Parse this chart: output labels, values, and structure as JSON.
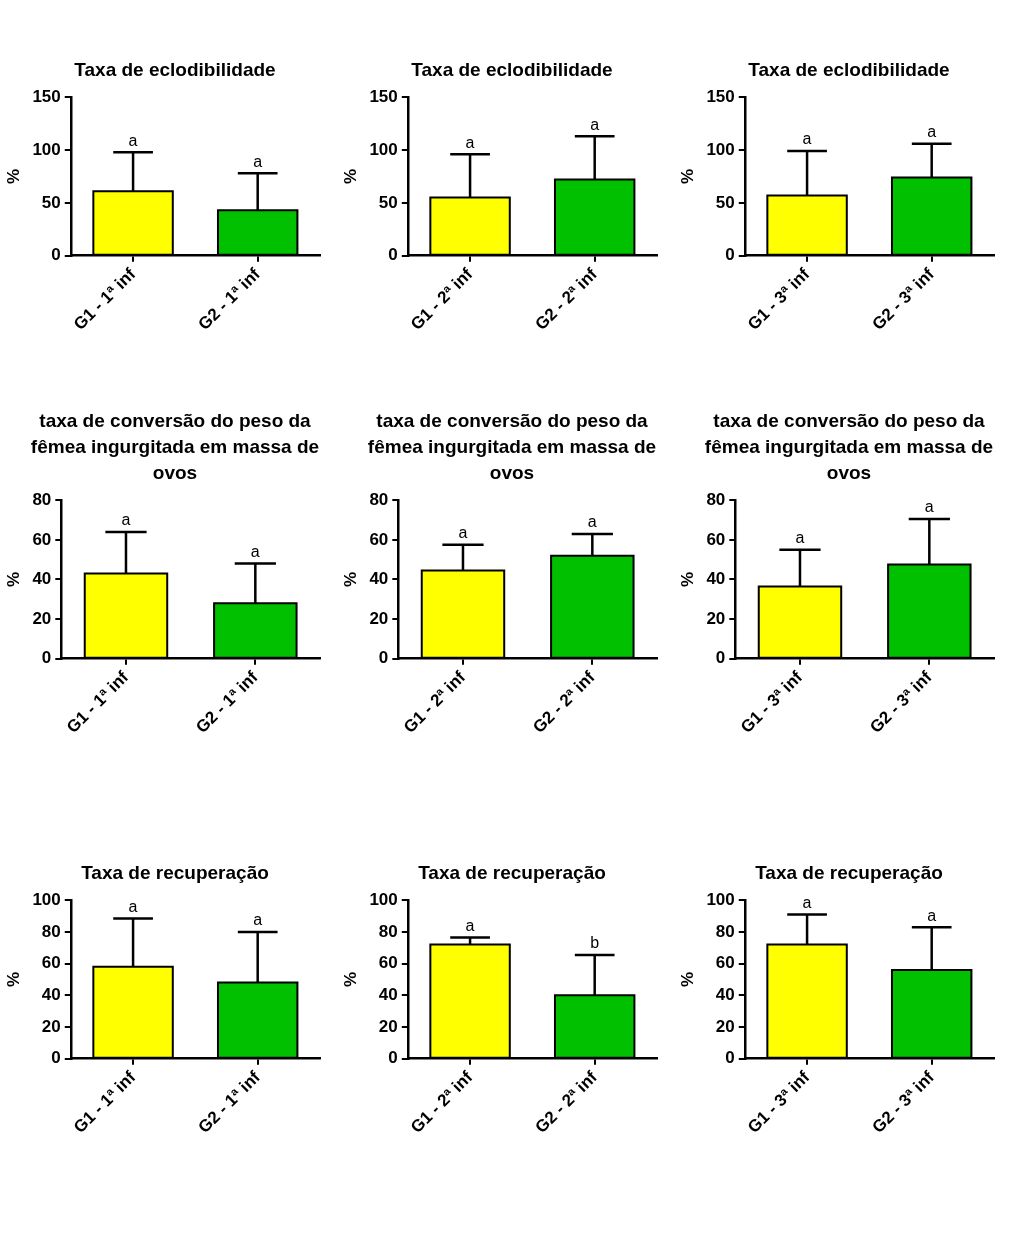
{
  "chart_data": [
    {
      "type": "bar",
      "title": "Taxa de eclodibilidade",
      "ylabel": "%",
      "categories": [
        "G1 - 1ª inf",
        "G2 - 1ª inf"
      ],
      "values": [
        61,
        43
      ],
      "colors": [
        "#ffff00",
        "#00c000"
      ],
      "errors": [
        [
          61,
          98
        ],
        [
          43,
          78
        ]
      ],
      "ylim": [
        0,
        150
      ],
      "yticks": [
        0,
        50,
        100,
        150
      ],
      "grid": false,
      "legend": false,
      "annotations": [
        {
          "text": "a",
          "x": "G1 - 1ª inf",
          "y": 98
        },
        {
          "text": "a",
          "x": "G2 - 1ª inf",
          "y": 78
        }
      ]
    },
    {
      "type": "bar",
      "title": "Taxa de eclodibilidade",
      "ylabel": "%",
      "categories": [
        "G1 - 2ª inf",
        "G2 - 2ª inf"
      ],
      "values": [
        55,
        72
      ],
      "colors": [
        "#ffff00",
        "#00c000"
      ],
      "errors": [
        [
          55,
          96
        ],
        [
          72,
          113
        ]
      ],
      "ylim": [
        0,
        150
      ],
      "yticks": [
        0,
        50,
        100,
        150
      ],
      "grid": false,
      "legend": false,
      "annotations": [
        {
          "text": "a",
          "x": "G1 - 2ª inf",
          "y": 96
        },
        {
          "text": "a",
          "x": "G2 - 2ª inf",
          "y": 113
        }
      ]
    },
    {
      "type": "bar",
      "title": "Taxa de eclodibilidade",
      "ylabel": "%",
      "categories": [
        "G1 - 3ª inf",
        "G2 - 3ª inf"
      ],
      "values": [
        57,
        74
      ],
      "colors": [
        "#ffff00",
        "#00c000"
      ],
      "errors": [
        [
          57,
          99
        ],
        [
          74,
          106
        ]
      ],
      "ylim": [
        0,
        150
      ],
      "yticks": [
        0,
        50,
        100,
        150
      ],
      "grid": false,
      "legend": false,
      "annotations": [
        {
          "text": "a",
          "x": "G1 - 3ª inf",
          "y": 99
        },
        {
          "text": "a",
          "x": "G2 - 3ª inf",
          "y": 106
        }
      ]
    },
    {
      "type": "bar",
      "title": "taxa de conversão do peso da fêmea ingurgitada em massa de ovos",
      "ylabel": "%",
      "categories": [
        "G1 - 1ª inf",
        "G2 - 1ª inf"
      ],
      "values": [
        43,
        28
      ],
      "colors": [
        "#ffff00",
        "#00c000"
      ],
      "errors": [
        [
          43,
          64
        ],
        [
          28,
          48
        ]
      ],
      "ylim": [
        0,
        80
      ],
      "yticks": [
        0,
        20,
        40,
        60,
        80
      ],
      "grid": false,
      "legend": false,
      "annotations": [
        {
          "text": "a",
          "x": "G1 - 1ª inf",
          "y": 64
        },
        {
          "text": "a",
          "x": "G2 - 1ª inf",
          "y": 48
        }
      ]
    },
    {
      "type": "bar",
      "title": "taxa de conversão do peso da fêmea ingurgitada em massa de ovos",
      "ylabel": "%",
      "categories": [
        "G1 - 2ª inf",
        "G2 - 2ª inf"
      ],
      "values": [
        44.5,
        52
      ],
      "colors": [
        "#ffff00",
        "#00c000"
      ],
      "errors": [
        [
          44.5,
          57.5
        ],
        [
          52,
          63
        ]
      ],
      "ylim": [
        0,
        80
      ],
      "yticks": [
        0,
        20,
        40,
        60,
        80
      ],
      "grid": false,
      "legend": false,
      "annotations": [
        {
          "text": "a",
          "x": "G1 - 2ª inf",
          "y": 57.5
        },
        {
          "text": "a",
          "x": "G2 - 2ª inf",
          "y": 63
        }
      ]
    },
    {
      "type": "bar",
      "title": "taxa de conversão do peso da fêmea ingurgitada em massa de ovos",
      "ylabel": "%",
      "categories": [
        "G1 - 3ª inf",
        "G2 - 3ª inf"
      ],
      "values": [
        36.5,
        47.5
      ],
      "colors": [
        "#ffff00",
        "#00c000"
      ],
      "errors": [
        [
          36.5,
          55
        ],
        [
          47.5,
          70.5
        ]
      ],
      "ylim": [
        0,
        80
      ],
      "yticks": [
        0,
        20,
        40,
        60,
        80
      ],
      "grid": false,
      "legend": false,
      "annotations": [
        {
          "text": "a",
          "x": "G1 - 3ª inf",
          "y": 55
        },
        {
          "text": "a",
          "x": "G2 - 3ª inf",
          "y": 70.5
        }
      ]
    },
    {
      "type": "bar",
      "title": "Taxa de recuperação",
      "ylabel": "%",
      "categories": [
        "G1 - 1ª inf",
        "G2 - 1ª inf"
      ],
      "values": [
        58,
        48
      ],
      "colors": [
        "#ffff00",
        "#00c000"
      ],
      "errors": [
        [
          58,
          88.5
        ],
        [
          48,
          80
        ]
      ],
      "ylim": [
        0,
        100
      ],
      "yticks": [
        0,
        20,
        40,
        60,
        80,
        100
      ],
      "grid": false,
      "legend": false,
      "annotations": [
        {
          "text": "a",
          "x": "G1 - 1ª inf",
          "y": 88.5
        },
        {
          "text": "a",
          "x": "G2 - 1ª inf",
          "y": 80
        }
      ]
    },
    {
      "type": "bar",
      "title": "Taxa de recuperação",
      "ylabel": "%",
      "categories": [
        "G1 - 2ª inf",
        "G2 - 2ª inf"
      ],
      "values": [
        72,
        40
      ],
      "colors": [
        "#ffff00",
        "#00c000"
      ],
      "errors": [
        [
          72,
          76.5
        ],
        [
          40,
          65.5
        ]
      ],
      "ylim": [
        0,
        100
      ],
      "yticks": [
        0,
        20,
        40,
        60,
        80,
        100
      ],
      "grid": false,
      "legend": false,
      "annotations": [
        {
          "text": "a",
          "x": "G1 - 2ª inf",
          "y": 76.5
        },
        {
          "text": "b",
          "x": "G2 - 2ª inf",
          "y": 65.5
        }
      ]
    },
    {
      "type": "bar",
      "title": "Taxa de recuperação",
      "ylabel": "%",
      "categories": [
        "G1 - 3ª inf",
        "G2 - 3ª inf"
      ],
      "values": [
        72,
        56
      ],
      "colors": [
        "#ffff00",
        "#00c000"
      ],
      "errors": [
        [
          72,
          91
        ],
        [
          56,
          83
        ]
      ],
      "ylim": [
        0,
        100
      ],
      "yticks": [
        0,
        20,
        40,
        60,
        80,
        100
      ],
      "grid": false,
      "legend": false,
      "annotations": [
        {
          "text": "a",
          "x": "G1 - 3ª inf",
          "y": 91
        },
        {
          "text": "a",
          "x": "G2 - 3ª inf",
          "y": 83
        }
      ]
    }
  ]
}
